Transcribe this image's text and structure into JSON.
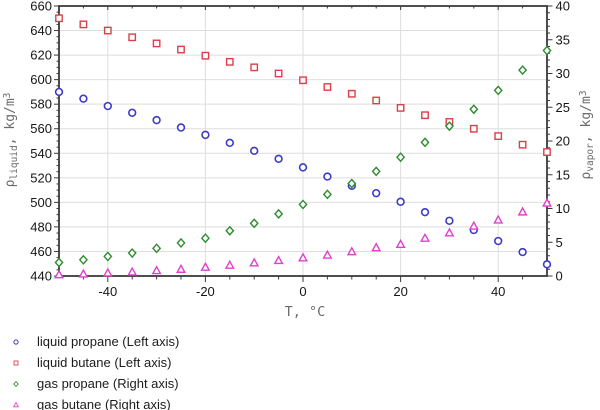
{
  "chart_data": {
    "type": "scatter",
    "x": [
      -50,
      -45,
      -40,
      -35,
      -30,
      -25,
      -20,
      -15,
      -10,
      -5,
      0,
      5,
      10,
      15,
      20,
      25,
      30,
      35,
      40,
      45,
      50
    ],
    "series": [
      {
        "name": "liquid propane (Left axis)",
        "axis": "left",
        "marker": "circle",
        "color": "#3c3cc8",
        "values": [
          590,
          584.5,
          578.5,
          573,
          567,
          561,
          555,
          548.5,
          542,
          535.5,
          528.5,
          521,
          513.5,
          507.5,
          500.5,
          492,
          485,
          477.5,
          468.5,
          459.5,
          449.5
        ]
      },
      {
        "name": "liquid butane (Left axis)",
        "axis": "left",
        "marker": "square",
        "color": "#dc3e48",
        "values": [
          650,
          645,
          640,
          634.5,
          629.5,
          624.5,
          619.5,
          614.5,
          610,
          605,
          599.5,
          594,
          588.5,
          583,
          577,
          571,
          565.5,
          560,
          554,
          547,
          541
        ]
      },
      {
        "name": "gas propane (Right axis)",
        "axis": "right",
        "marker": "diamond",
        "color": "#2e8b2e",
        "values": [
          2,
          2.4,
          2.9,
          3.4,
          4.1,
          4.9,
          5.6,
          6.7,
          7.8,
          9.2,
          10.6,
          12.1,
          13.7,
          15.5,
          17.6,
          19.8,
          22.2,
          24.7,
          27.5,
          30.5,
          33.4
        ]
      },
      {
        "name": "gas butane (Right axis)",
        "axis": "right",
        "marker": "triangle",
        "color": "#e040cc",
        "values": [
          0.2,
          0.3,
          0.45,
          0.6,
          0.8,
          1.0,
          1.3,
          1.6,
          1.95,
          2.3,
          2.7,
          3.1,
          3.6,
          4.2,
          4.7,
          5.6,
          6.4,
          7.4,
          8.3,
          9.5,
          10.8
        ]
      }
    ],
    "xlabel": "T, °C",
    "xlim": [
      -50,
      50
    ],
    "x_ticks": [
      -40,
      -20,
      0,
      20,
      40
    ],
    "x_minor_step": 5,
    "left_axis": {
      "sym": "ρ",
      "sub": "liquid",
      "mid": ", kg/m",
      "sup": "3",
      "ticks": [
        660,
        640,
        620,
        600,
        580,
        560,
        540,
        520,
        500,
        480,
        460,
        440
      ],
      "lim": [
        440,
        660
      ],
      "minor_step": 5
    },
    "right_axis": {
      "sym": "ρ",
      "sub": "vapor",
      "mid": ", kg/m",
      "sup": "3",
      "ticks": [
        40,
        35,
        30,
        25,
        20,
        15,
        10,
        5,
        0
      ],
      "lim": [
        0,
        40
      ],
      "minor_step": 1
    },
    "grid": true,
    "legend_position": "bottom-left",
    "colors": {
      "grid": "#dedede",
      "frame": "#3b3b3b",
      "tick_label": "#161616",
      "axis_title": "#6b6b6b",
      "background": "#ffffff"
    }
  }
}
